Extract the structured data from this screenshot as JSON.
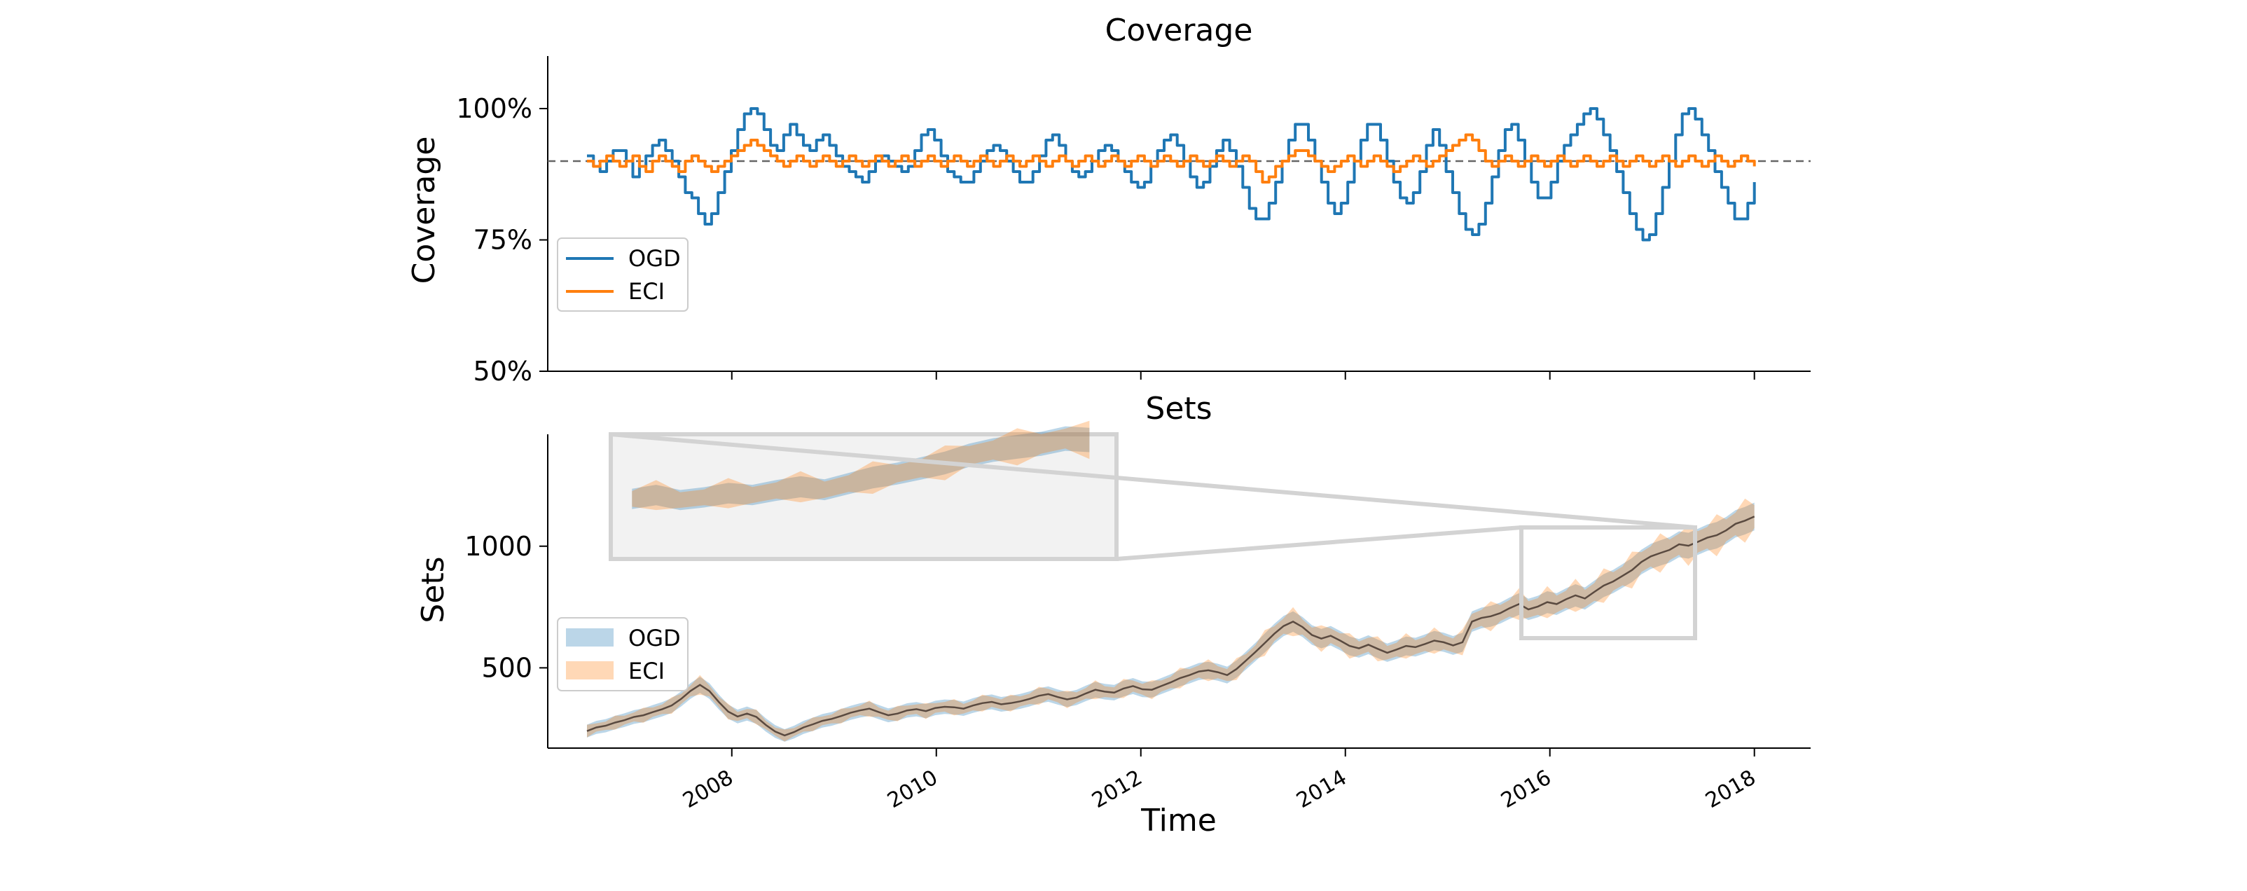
{
  "figure": {
    "xlabel": "Time"
  },
  "chart_data": [
    {
      "type": "line",
      "title": "Coverage",
      "ylabel": "Coverage",
      "ylim": [
        0.5,
        1.1
      ],
      "yticks": [
        0.5,
        0.75,
        1.0
      ],
      "ytick_labels": [
        "50%",
        "75%",
        "100%"
      ],
      "reference_line": 0.9,
      "legend": {
        "location": "lower-left",
        "entries": [
          "OGD",
          "ECI"
        ]
      },
      "x_start": "2006-08",
      "x_end": "2018-01",
      "series": [
        {
          "name": "OGD",
          "color": "#1f77b4",
          "values": [
            0.91,
            0.89,
            0.88,
            0.9,
            0.92,
            0.92,
            0.9,
            0.87,
            0.89,
            0.91,
            0.93,
            0.94,
            0.92,
            0.9,
            0.87,
            0.84,
            0.83,
            0.8,
            0.78,
            0.8,
            0.84,
            0.88,
            0.92,
            0.96,
            0.99,
            1.0,
            0.99,
            0.96,
            0.93,
            0.92,
            0.95,
            0.97,
            0.95,
            0.93,
            0.92,
            0.94,
            0.95,
            0.93,
            0.91,
            0.89,
            0.88,
            0.87,
            0.86,
            0.88,
            0.9,
            0.91,
            0.9,
            0.89,
            0.88,
            0.89,
            0.92,
            0.95,
            0.96,
            0.94,
            0.91,
            0.88,
            0.87,
            0.86,
            0.86,
            0.88,
            0.9,
            0.92,
            0.93,
            0.92,
            0.9,
            0.88,
            0.86,
            0.86,
            0.88,
            0.91,
            0.94,
            0.95,
            0.93,
            0.9,
            0.88,
            0.87,
            0.88,
            0.9,
            0.92,
            0.93,
            0.92,
            0.9,
            0.88,
            0.86,
            0.85,
            0.86,
            0.89,
            0.92,
            0.94,
            0.95,
            0.93,
            0.9,
            0.87,
            0.85,
            0.86,
            0.89,
            0.92,
            0.94,
            0.92,
            0.89,
            0.85,
            0.81,
            0.79,
            0.79,
            0.82,
            0.86,
            0.9,
            0.94,
            0.97,
            0.97,
            0.94,
            0.9,
            0.86,
            0.82,
            0.8,
            0.82,
            0.86,
            0.9,
            0.94,
            0.97,
            0.97,
            0.94,
            0.9,
            0.86,
            0.83,
            0.82,
            0.84,
            0.88,
            0.93,
            0.96,
            0.93,
            0.88,
            0.84,
            0.8,
            0.77,
            0.76,
            0.78,
            0.82,
            0.87,
            0.92,
            0.96,
            0.97,
            0.94,
            0.9,
            0.86,
            0.83,
            0.83,
            0.86,
            0.9,
            0.93,
            0.95,
            0.97,
            0.99,
            1.0,
            0.98,
            0.95,
            0.92,
            0.88,
            0.84,
            0.8,
            0.77,
            0.75,
            0.76,
            0.8,
            0.85,
            0.9,
            0.95,
            0.99,
            1.0,
            0.98,
            0.95,
            0.92,
            0.88,
            0.85,
            0.82,
            0.79,
            0.79,
            0.82,
            0.86
          ]
        },
        {
          "name": "ECI",
          "color": "#ff7f0e",
          "values": [
            0.9,
            0.89,
            0.9,
            0.91,
            0.9,
            0.89,
            0.9,
            0.91,
            0.89,
            0.88,
            0.9,
            0.91,
            0.9,
            0.89,
            0.88,
            0.9,
            0.91,
            0.9,
            0.89,
            0.88,
            0.89,
            0.9,
            0.91,
            0.92,
            0.93,
            0.94,
            0.93,
            0.92,
            0.91,
            0.9,
            0.89,
            0.9,
            0.91,
            0.9,
            0.89,
            0.9,
            0.91,
            0.9,
            0.89,
            0.9,
            0.91,
            0.9,
            0.89,
            0.9,
            0.91,
            0.9,
            0.89,
            0.9,
            0.91,
            0.9,
            0.89,
            0.9,
            0.91,
            0.9,
            0.89,
            0.9,
            0.91,
            0.9,
            0.89,
            0.9,
            0.91,
            0.9,
            0.89,
            0.9,
            0.91,
            0.9,
            0.89,
            0.9,
            0.91,
            0.9,
            0.89,
            0.9,
            0.91,
            0.9,
            0.89,
            0.9,
            0.91,
            0.9,
            0.89,
            0.9,
            0.91,
            0.9,
            0.89,
            0.9,
            0.91,
            0.9,
            0.89,
            0.9,
            0.91,
            0.9,
            0.89,
            0.9,
            0.91,
            0.9,
            0.89,
            0.9,
            0.91,
            0.9,
            0.89,
            0.9,
            0.91,
            0.9,
            0.88,
            0.86,
            0.87,
            0.89,
            0.9,
            0.91,
            0.92,
            0.92,
            0.91,
            0.9,
            0.89,
            0.88,
            0.89,
            0.9,
            0.91,
            0.9,
            0.89,
            0.9,
            0.91,
            0.9,
            0.89,
            0.88,
            0.89,
            0.9,
            0.91,
            0.9,
            0.89,
            0.9,
            0.91,
            0.92,
            0.93,
            0.94,
            0.95,
            0.94,
            0.92,
            0.9,
            0.89,
            0.9,
            0.91,
            0.9,
            0.89,
            0.9,
            0.91,
            0.9,
            0.89,
            0.9,
            0.91,
            0.9,
            0.89,
            0.9,
            0.91,
            0.9,
            0.89,
            0.9,
            0.91,
            0.9,
            0.89,
            0.9,
            0.91,
            0.9,
            0.89,
            0.9,
            0.91,
            0.9,
            0.89,
            0.9,
            0.91,
            0.9,
            0.89,
            0.9,
            0.91,
            0.9,
            0.89,
            0.9,
            0.91,
            0.9,
            0.89
          ]
        }
      ]
    },
    {
      "type": "area",
      "title": "Sets",
      "ylabel": "Sets",
      "xlabel": "Time",
      "ylim": [
        170,
        1460
      ],
      "yticks": [
        500,
        1000
      ],
      "ytick_labels": [
        "500",
        "1000"
      ],
      "xlim": [
        2006.2,
        2018.55
      ],
      "xticks": [
        2008,
        2010,
        2012,
        2014,
        2016,
        2018
      ],
      "xtick_labels": [
        "2008",
        "2010",
        "2012",
        "2014",
        "2016",
        "2018"
      ],
      "legend": {
        "location": "lower-left",
        "entries": [
          "OGD",
          "ECI"
        ]
      },
      "x_start": "2006-08",
      "x_end": "2018-01",
      "series": [
        {
          "name": "OGD",
          "color": "#1f77b4",
          "band": "interval",
          "values": [
            240,
            255,
            262,
            275,
            285,
            298,
            305,
            318,
            330,
            345,
            372,
            405,
            430,
            405,
            360,
            320,
            300,
            312,
            298,
            265,
            238,
            222,
            236,
            255,
            268,
            282,
            290,
            302,
            315,
            325,
            332,
            318,
            305,
            312,
            325,
            330,
            322,
            335,
            340,
            338,
            332,
            345,
            355,
            360,
            350,
            355,
            362,
            372,
            385,
            392,
            380,
            370,
            378,
            395,
            410,
            402,
            398,
            415,
            425,
            412,
            410,
            425,
            440,
            458,
            470,
            485,
            490,
            482,
            470,
            495,
            530,
            565,
            602,
            640,
            672,
            690,
            668,
            635,
            620,
            632,
            612,
            590,
            580,
            595,
            578,
            562,
            575,
            590,
            585,
            598,
            612,
            605,
            592,
            605,
            690,
            705,
            712,
            725,
            745,
            762,
            740,
            752,
            770,
            762,
            782,
            798,
            785,
            812,
            838,
            855,
            878,
            902,
            935,
            958,
            972,
            985,
            1008,
            1002,
            1018,
            1035,
            1045,
            1065,
            1092,
            1105,
            1122
          ]
        },
        {
          "name": "ECI",
          "color": "#ff7f0e",
          "band": "interval",
          "values": [
            240,
            255,
            262,
            275,
            285,
            298,
            305,
            318,
            330,
            345,
            372,
            405,
            430,
            405,
            360,
            320,
            300,
            312,
            298,
            265,
            238,
            222,
            236,
            255,
            268,
            282,
            290,
            302,
            315,
            325,
            332,
            318,
            305,
            312,
            325,
            330,
            322,
            335,
            340,
            338,
            332,
            345,
            355,
            360,
            350,
            355,
            362,
            372,
            385,
            392,
            380,
            370,
            378,
            395,
            410,
            402,
            398,
            415,
            425,
            412,
            410,
            425,
            440,
            458,
            470,
            485,
            490,
            482,
            470,
            495,
            530,
            565,
            602,
            640,
            672,
            690,
            668,
            635,
            620,
            632,
            612,
            590,
            580,
            595,
            578,
            562,
            575,
            590,
            585,
            598,
            612,
            605,
            592,
            605,
            690,
            705,
            712,
            725,
            745,
            762,
            740,
            752,
            770,
            762,
            782,
            798,
            785,
            812,
            838,
            855,
            878,
            902,
            935,
            958,
            972,
            985,
            1008,
            1002,
            1018,
            1035,
            1045,
            1065,
            1092,
            1105,
            1122
          ]
        }
      ],
      "zoom_inset": {
        "x_range": [
          2015.6,
          2017.4
        ],
        "y_range": [
          520,
          990
        ]
      }
    }
  ]
}
